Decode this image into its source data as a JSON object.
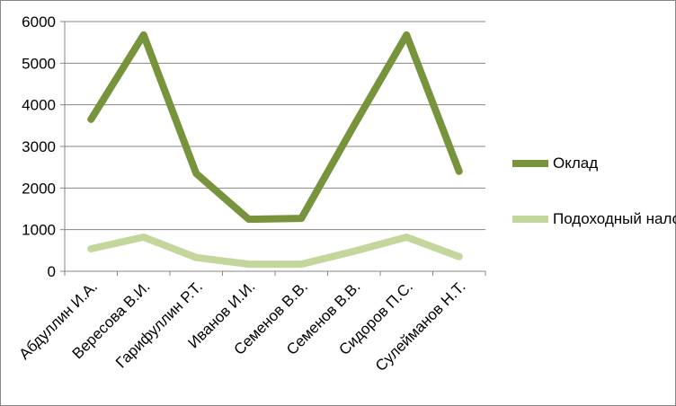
{
  "chart_data": {
    "type": "line",
    "categories": [
      "Абдуллин И.А.",
      "Вересова В.И.",
      "Гарифуллин Р.Т.",
      "Иванов И.И.",
      "Семенов В.В.",
      "Семенов В.В.",
      "Сидоров П.С.",
      "Сулейманов Н.Т."
    ],
    "series": [
      {
        "name": "Оклад",
        "color": "#77933c",
        "values": [
          3650,
          5680,
          2350,
          1250,
          1270,
          3500,
          5680,
          2400
        ]
      },
      {
        "name": "Подоходный налог",
        "color": "#c3d69b",
        "values": [
          540,
          820,
          330,
          170,
          170,
          480,
          820,
          350
        ]
      }
    ],
    "ylim": [
      0,
      6000
    ],
    "yticks": [
      0,
      1000,
      2000,
      3000,
      4000,
      5000,
      6000
    ],
    "grid": true,
    "legend": "right"
  }
}
